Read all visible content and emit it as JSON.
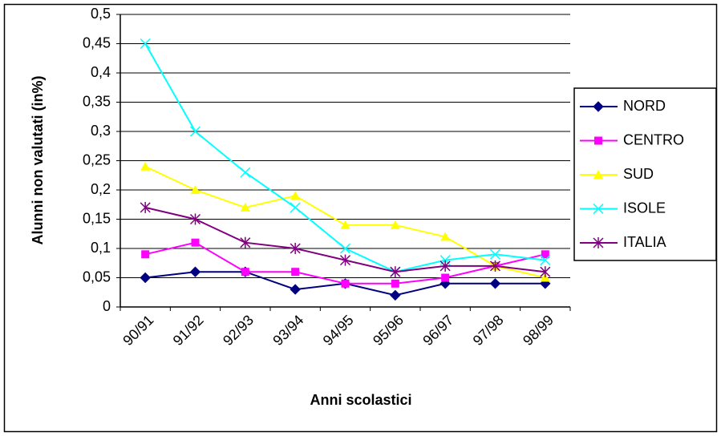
{
  "chart_data": {
    "type": "line",
    "y_label": "Alunni non valutati (in%)",
    "x_label": "Anni scolastici",
    "categories": [
      "90/91",
      "91/92",
      "92/93",
      "93/94",
      "94/95",
      "95/96",
      "96/97",
      "97/98",
      "98/99"
    ],
    "series": [
      {
        "name": "NORD",
        "color": "#000080",
        "marker": "diamond",
        "values": [
          0.05,
          0.06,
          0.06,
          0.03,
          0.04,
          0.02,
          0.04,
          0.04,
          0.04
        ]
      },
      {
        "name": "CENTRO",
        "color": "#ff00ff",
        "marker": "square",
        "values": [
          0.09,
          0.11,
          0.06,
          0.06,
          0.04,
          0.04,
          0.05,
          0.07,
          0.09
        ]
      },
      {
        "name": "SUD",
        "color": "#ffff00",
        "marker": "triangle",
        "values": [
          0.24,
          0.2,
          0.17,
          0.19,
          0.14,
          0.14,
          0.12,
          0.07,
          0.05
        ]
      },
      {
        "name": "ISOLE",
        "color": "#00ffff",
        "marker": "x",
        "values": [
          0.45,
          0.3,
          0.23,
          0.17,
          0.1,
          0.06,
          0.08,
          0.09,
          0.08
        ]
      },
      {
        "name": "ITALIA",
        "color": "#800080",
        "marker": "star",
        "values": [
          0.17,
          0.15,
          0.11,
          0.1,
          0.08,
          0.06,
          0.07,
          0.07,
          0.06
        ]
      }
    ],
    "ylim": [
      0,
      0.5
    ],
    "yticks": [
      0,
      {
        "value": 0.05,
        "label": "0,05"
      },
      {
        "value": 0.1,
        "label": "0,1"
      },
      {
        "value": 0.15,
        "label": "0,15"
      },
      {
        "value": 0.2,
        "label": "0,2"
      },
      {
        "value": 0.25,
        "label": "0,25"
      },
      {
        "value": 0.3,
        "label": "0,3"
      },
      {
        "value": 0.35,
        "label": "0,35"
      },
      {
        "value": 0.4,
        "label": "0,4"
      },
      {
        "value": 0.45,
        "label": "0,45"
      },
      {
        "value": 0.5,
        "label": "0,5"
      }
    ],
    "grid": true,
    "legend": "right"
  }
}
